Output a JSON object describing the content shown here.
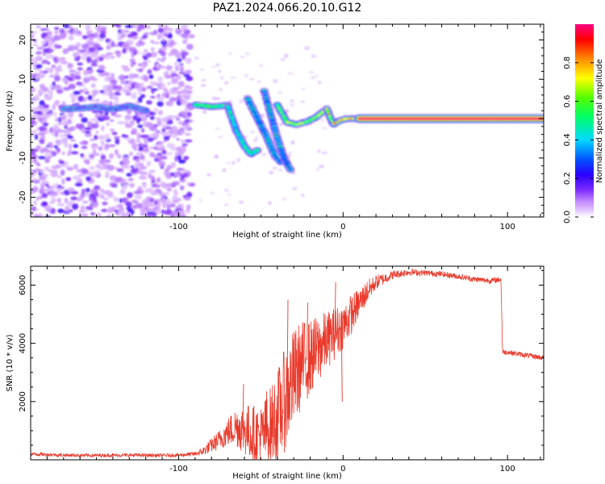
{
  "title": "PAZ1.2024.066.20.10.G12",
  "chart_data": [
    {
      "type": "heatmap",
      "xlabel": "Height of straight line (km)",
      "ylabel": "Frequency (Hz)",
      "xlim": [
        -190,
        122
      ],
      "ylim": [
        -25,
        24
      ],
      "xticks": [
        "-100",
        "0",
        "100"
      ],
      "yticks": [
        "-20",
        "-10",
        "0",
        "10",
        "20"
      ],
      "colorbar": {
        "label": "Normalized spectral amplitude",
        "ticks": [
          "0.0",
          "0.2",
          "0.4",
          "0.6",
          "0.8"
        ],
        "range": [
          0,
          1
        ]
      },
      "tracks": [
        {
          "x": [
            -170,
            -160,
            -150,
            -140,
            -130,
            -120
          ],
          "y": [
            2.5,
            2.6,
            3.0,
            2.4,
            3.2,
            2.0
          ],
          "amp": 0.15
        },
        {
          "x": [
            -90,
            -85,
            -80,
            -75,
            -70
          ],
          "y": [
            3.5,
            3.3,
            3.0,
            3.2,
            3.4
          ],
          "amp": 0.55
        },
        {
          "x": [
            -70,
            -65,
            -60,
            -56,
            -52
          ],
          "y": [
            3.0,
            -3.0,
            -7.0,
            -9.0,
            -8.0
          ],
          "amp": 0.45
        },
        {
          "x": [
            -58,
            -52,
            -46,
            -42,
            -38
          ],
          "y": [
            5.0,
            0.0,
            -5.0,
            -9.0,
            -11.0
          ],
          "amp": 0.3
        },
        {
          "x": [
            -48,
            -44,
            -40,
            -36,
            -32
          ],
          "y": [
            7.0,
            1.0,
            -5.0,
            -10.0,
            -13.0
          ],
          "amp": 0.25
        },
        {
          "x": [
            -40,
            -34,
            -28,
            -22,
            -16,
            -10
          ],
          "y": [
            3.5,
            -1.0,
            -1.5,
            -0.8,
            0.5,
            2.5
          ],
          "amp": 0.65
        },
        {
          "x": [
            -10,
            -6,
            -2,
            2,
            10
          ],
          "y": [
            2.5,
            -1.5,
            -0.5,
            0.0,
            0.0
          ],
          "amp": 0.8
        },
        {
          "x": [
            10,
            40,
            70,
            100,
            122
          ],
          "y": [
            0.0,
            0.0,
            0.0,
            0.0,
            0.0
          ],
          "amp": 1.0
        }
      ]
    },
    {
      "type": "line",
      "xlabel": "Height of straight line (km)",
      "ylabel": "SNR (10 * v/v)",
      "xlim": [
        -190,
        122
      ],
      "ylim": [
        0,
        6650
      ],
      "xticks": [
        "-100",
        "0",
        "100"
      ],
      "yticks": [
        "2000",
        "4000",
        "6000"
      ],
      "series": [
        {
          "color": "#e83a2c",
          "x": [
            -190,
            -170,
            -150,
            -130,
            -110,
            -100,
            -90,
            -85,
            -80,
            -75,
            -70,
            -65,
            -60,
            -55,
            -50,
            -45,
            -40,
            -35,
            -30,
            -25,
            -20,
            -15,
            -10,
            -5,
            0,
            5,
            10,
            15,
            20,
            30,
            40,
            50,
            60,
            70,
            80,
            90,
            96,
            97,
            100,
            110,
            122
          ],
          "y": [
            200,
            160,
            150,
            160,
            150,
            160,
            200,
            300,
            500,
            700,
            950,
            1150,
            1050,
            900,
            800,
            1100,
            1500,
            2100,
            2800,
            3300,
            3500,
            3800,
            4100,
            4350,
            4600,
            5000,
            5400,
            5800,
            6100,
            6350,
            6450,
            6420,
            6380,
            6300,
            6200,
            6150,
            6200,
            3700,
            3700,
            3600,
            3500
          ],
          "noise": [
            60,
            60,
            60,
            60,
            60,
            60,
            80,
            150,
            250,
            350,
            500,
            700,
            900,
            1000,
            1100,
            1300,
            1600,
            1800,
            1700,
            1500,
            1300,
            1200,
            1000,
            900,
            800,
            700,
            500,
            400,
            250,
            150,
            120,
            100,
            100,
            100,
            100,
            100,
            100,
            90,
            90,
            90,
            90
          ],
          "spikes": [
            {
              "x": -61,
              "y": 2600
            },
            {
              "x": -47,
              "y": 2350
            },
            {
              "x": -34,
              "y": 5500
            },
            {
              "x": -22,
              "y": 5400
            },
            {
              "x": -5,
              "y": 6100
            },
            {
              "x": -1,
              "y": 2000
            }
          ]
        }
      ]
    }
  ]
}
